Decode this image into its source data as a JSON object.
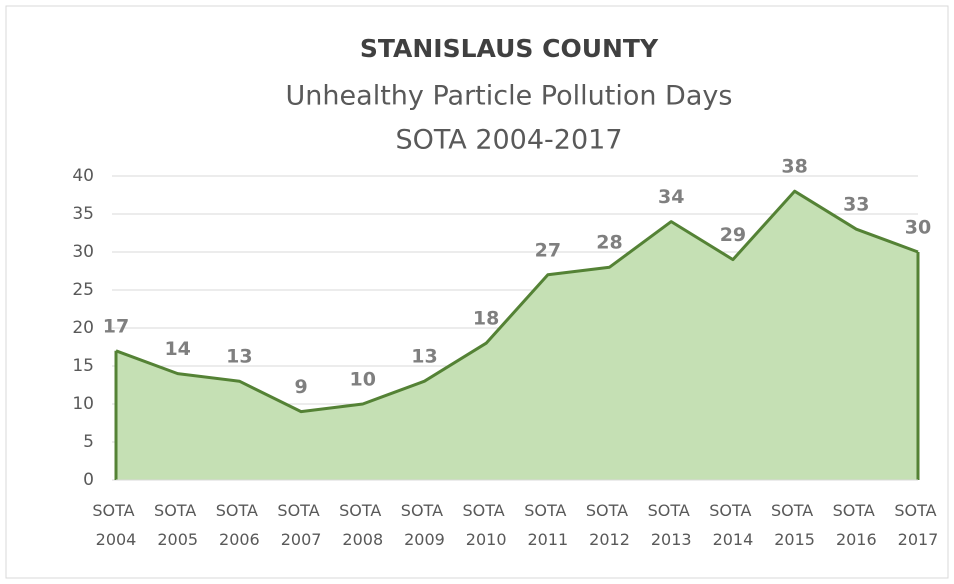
{
  "chart_data": {
    "type": "area",
    "title": "STANISLAUS COUNTY",
    "subtitle": "Unhealthy Particle Pollution Days",
    "subtitle2": "SOTA 2004-2017",
    "categories": [
      "SOTA 2004",
      "SOTA 2005",
      "SOTA 2006",
      "SOTA 2007",
      "SOTA 2008",
      "SOTA 2009",
      "SOTA 2010",
      "SOTA 2011",
      "SOTA 2012",
      "SOTA 2013",
      "SOTA 2014",
      "SOTA 2015",
      "SOTA 2016",
      "SOTA 2017"
    ],
    "values": [
      17,
      14,
      13,
      9,
      10,
      13,
      18,
      27,
      28,
      34,
      29,
      38,
      33,
      30
    ],
    "color": "#548235",
    "fill": "#c5e0b4",
    "ylim": [
      0,
      40
    ],
    "yticks": [
      0,
      5,
      10,
      15,
      20,
      25,
      30,
      35,
      40
    ],
    "grid": true
  }
}
